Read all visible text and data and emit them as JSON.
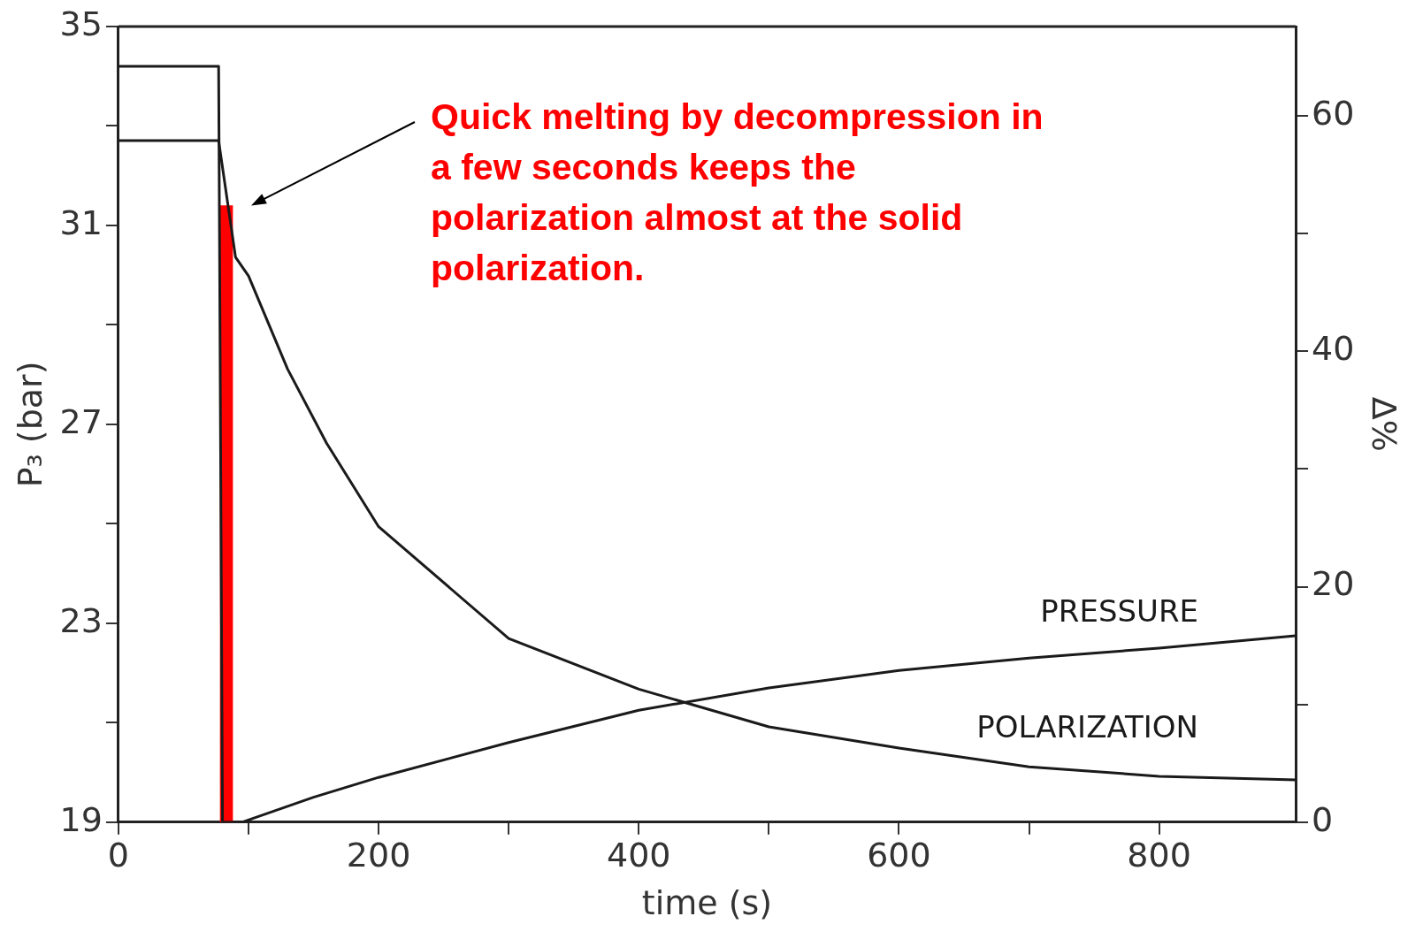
{
  "chart_data": {
    "type": "line",
    "xlabel": "time (s)",
    "ylabel": "P₃ (bar)",
    "y2label": "Δ%",
    "xlim": [
      0,
      905
    ],
    "xticks": [
      0,
      {
        "value": 100,
        "label": null
      },
      200,
      {
        "value": 300,
        "label": null
      },
      400,
      {
        "value": 500,
        "label": null
      },
      600,
      {
        "value": 700,
        "label": null
      },
      800
    ],
    "ylim": [
      19,
      35
    ],
    "yticks": [
      19,
      {
        "value": 21,
        "label": null
      },
      23,
      {
        "value": 25,
        "label": null
      },
      27,
      {
        "value": 29,
        "label": null
      },
      31,
      {
        "value": 33,
        "label": null
      },
      35
    ],
    "y2lim": [
      0,
      67.6
    ],
    "y2ticks": [
      0,
      {
        "value": 10,
        "label": null
      },
      20,
      {
        "value": 30,
        "label": null
      },
      40,
      {
        "value": 50,
        "label": null
      },
      60
    ],
    "grid": false,
    "legend": false,
    "marker": "none",
    "line_style": "solid",
    "series": [
      {
        "name": "PRESSURE",
        "color": "#1a1a1a",
        "x": [
          0,
          77,
          80,
          95,
          150,
          200,
          300,
          400,
          500,
          600,
          700,
          800,
          905
        ],
        "values": [
          34.2,
          34.2,
          19,
          19,
          19.5,
          19.9,
          20.6,
          21.25,
          21.7,
          22.05,
          22.3,
          22.5,
          22.75
        ]
      },
      {
        "name": "POLARIZATION",
        "color": "#1a1a1a",
        "axis": "y2",
        "x": [
          0,
          77,
          90,
          100,
          130,
          160,
          200,
          300,
          400,
          500,
          600,
          700,
          800,
          905
        ],
        "values": [
          57.9,
          57.9,
          48,
          46.4,
          38.5,
          32.2,
          25.1,
          15.6,
          11.3,
          8.1,
          6.3,
          4.7,
          3.9,
          3.6
        ]
      },
      {
        "type": "bar",
        "color": "#ff0000",
        "x": [
          83
        ],
        "values": [
          31.4
        ]
      }
    ],
    "annotations": [
      "Quick melting by decompression in a few seconds keeps the polarization almost at the solid polarization."
    ]
  }
}
